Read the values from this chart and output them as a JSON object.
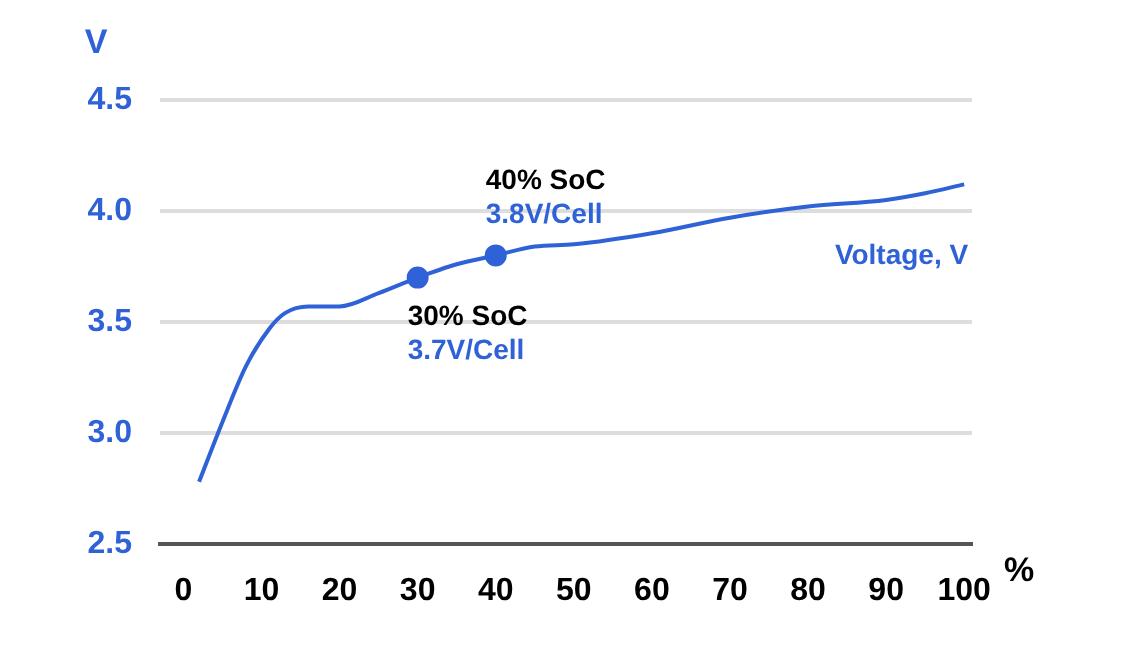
{
  "chart_data": {
    "type": "line",
    "xlabel": "%",
    "ylabel": "V",
    "xlim": [
      -3,
      101
    ],
    "xticks": [
      0,
      10,
      20,
      30,
      40,
      50,
      60,
      70,
      80,
      90,
      100
    ],
    "ylim": [
      2.5,
      4.5
    ],
    "yticks": [
      {
        "value": 2.5,
        "label": "2.5"
      },
      {
        "value": 3,
        "label": "3.0"
      },
      {
        "value": 3.5,
        "label": "3.5"
      },
      {
        "value": 4,
        "label": "4.0"
      },
      {
        "value": 4.5,
        "label": "4.5"
      }
    ],
    "grid": "y",
    "legend": false,
    "marker": "none",
    "line_style": "solid",
    "series": [
      {
        "name": "Voltage, V",
        "color": "#2f62d6",
        "x": [
          2,
          5,
          8,
          11,
          13,
          16,
          20,
          25,
          30,
          35,
          40,
          45,
          50,
          60,
          70,
          80,
          90,
          95,
          100
        ],
        "values": [
          2.78,
          3.05,
          3.3,
          3.47,
          3.54,
          3.57,
          3.57,
          3.63,
          3.7,
          3.76,
          3.8,
          3.84,
          3.85,
          3.9,
          3.97,
          4.02,
          4.05,
          4.08,
          4.12
        ]
      },
      {
        "type": "scatter",
        "marker": "circle",
        "color": "#2f62d6",
        "x": [
          30,
          40
        ],
        "values": [
          3.7,
          3.8
        ]
      }
    ],
    "annotations": [
      {
        "text": "30% SoC\n3.7V/Cell",
        "x": 30,
        "y": 3.7
      },
      {
        "text": "40% SoC\n3.8V/Cell",
        "x": 40,
        "y": 3.8
      }
    ]
  }
}
